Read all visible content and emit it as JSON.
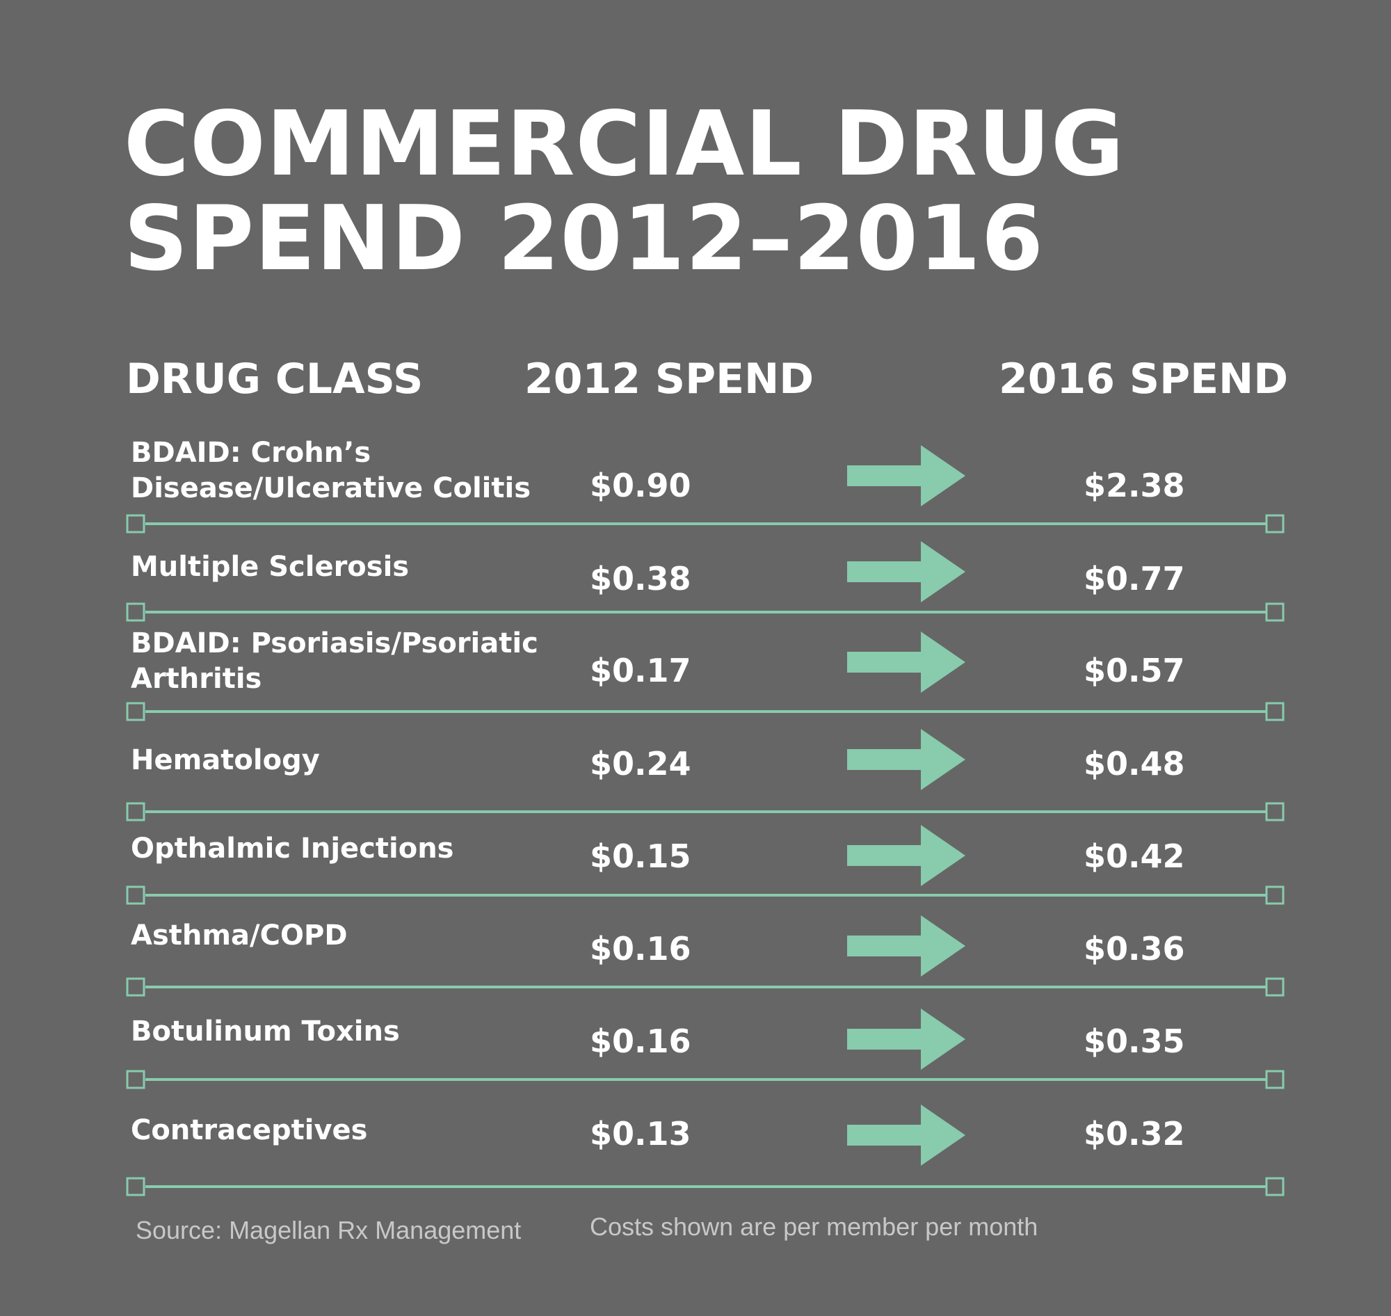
{
  "title_line1": "COMMERCIAL DRUG",
  "title_line2": "SPEND 2012–2016",
  "headers": {
    "drug_class": "DRUG CLASS",
    "spend_2012": "2012 SPEND",
    "spend_2016": "2016 SPEND"
  },
  "colors": {
    "background": "#666666",
    "accent": "#88cbad",
    "text": "#ffffff"
  },
  "rows": [
    {
      "drug": "BDAID: Crohn’s",
      "drug2": "Disease/Ulcerative Colitis",
      "spend_2012": "$0.90",
      "spend_2016": "$2.38"
    },
    {
      "drug": "Multiple Sclerosis",
      "drug2": "",
      "spend_2012": "$0.38",
      "spend_2016": "$0.77"
    },
    {
      "drug": "BDAID: Psoriasis/Psoriatic",
      "drug2": "Arthritis",
      "spend_2012": "$0.17",
      "spend_2016": "$0.57"
    },
    {
      "drug": "Hematology",
      "drug2": "",
      "spend_2012": "$0.24",
      "spend_2016": "$0.48"
    },
    {
      "drug": "Opthalmic Injections",
      "drug2": "",
      "spend_2012": "$0.15",
      "spend_2016": "$0.42"
    },
    {
      "drug": "Asthma/COPD",
      "drug2": "",
      "spend_2012": "$0.16",
      "spend_2016": "$0.36"
    },
    {
      "drug": "Botulinum Toxins",
      "drug2": "",
      "spend_2012": "$0.16",
      "spend_2016": "$0.35"
    },
    {
      "drug": "Contraceptives",
      "drug2": "",
      "spend_2012": "$0.13",
      "spend_2016": "$0.32"
    }
  ],
  "source": "Source: Magellan Rx Management",
  "note": "Costs shown are per member per month",
  "chart_data": {
    "type": "table",
    "title": "COMMERCIAL DRUG SPEND 2012–2016",
    "columns": [
      "DRUG CLASS",
      "2012 SPEND",
      "2016 SPEND"
    ],
    "categories": [
      "BDAID: Crohn’s Disease/Ulcerative Colitis",
      "Multiple Sclerosis",
      "BDAID: Psoriasis/Psoriatic Arthritis",
      "Hematology",
      "Opthalmic Injections",
      "Asthma/COPD",
      "Botulinum Toxins",
      "Contraceptives"
    ],
    "series": [
      {
        "name": "2012 SPEND",
        "values": [
          0.9,
          0.38,
          0.17,
          0.24,
          0.15,
          0.16,
          0.16,
          0.13
        ]
      },
      {
        "name": "2016 SPEND",
        "values": [
          2.38,
          0.77,
          0.57,
          0.48,
          0.42,
          0.36,
          0.35,
          0.32
        ]
      }
    ]
  }
}
